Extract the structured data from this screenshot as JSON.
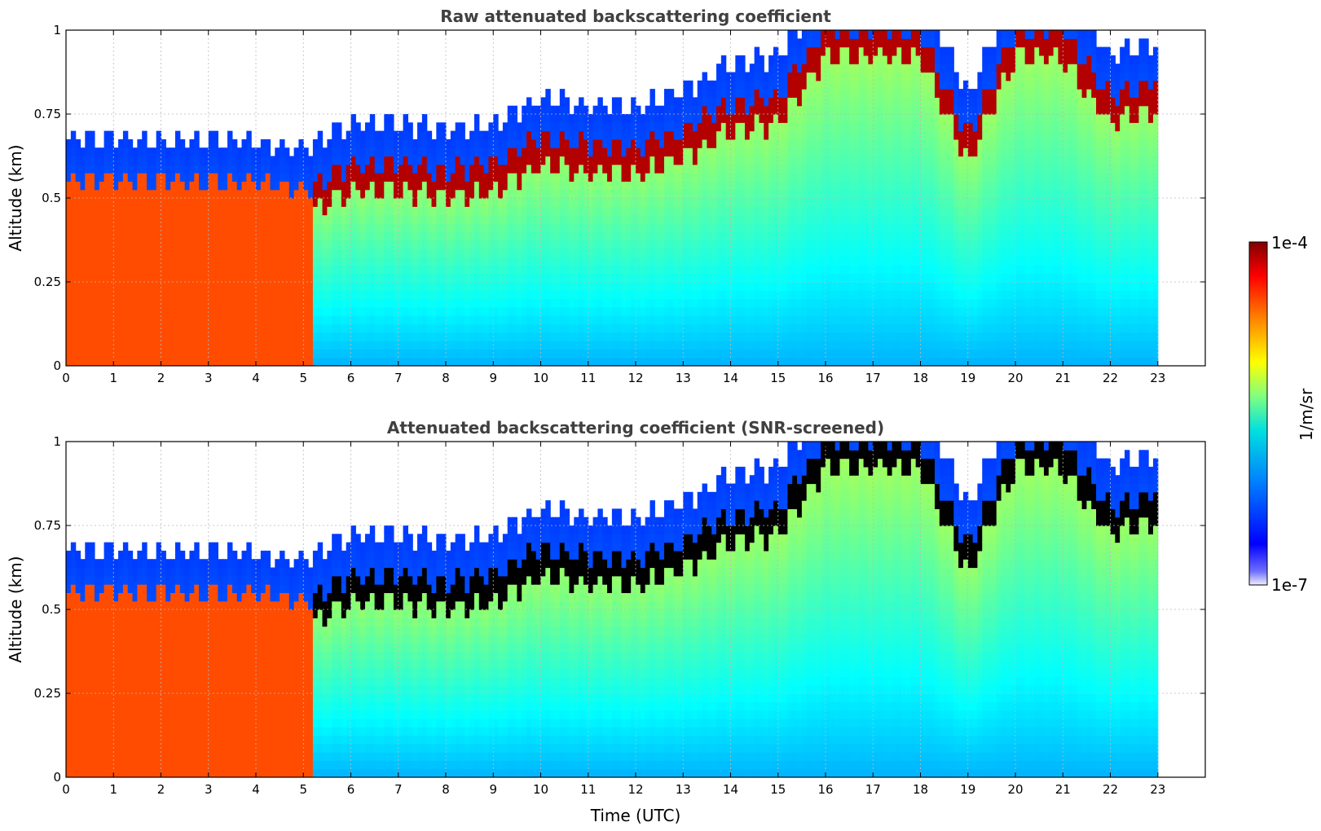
{
  "chart_data": [
    {
      "type": "heatmap",
      "title": "Raw attenuated backscattering coefficient",
      "xlabel": "",
      "ylabel": "Altitude (km)",
      "x_unit": "UTC hour",
      "xlim": [
        0,
        24
      ],
      "ylim": [
        0,
        1
      ],
      "x_ticks": [
        0,
        1,
        2,
        3,
        4,
        5,
        6,
        7,
        8,
        9,
        10,
        11,
        12,
        13,
        14,
        15,
        16,
        17,
        18,
        19,
        20,
        21,
        22,
        23
      ],
      "y_ticks": [
        0,
        0.25,
        0.5,
        0.75,
        1
      ],
      "y_tick_labels": [
        "0",
        "0.25",
        "0.5",
        "0.75",
        "1"
      ],
      "grid": true,
      "data_end_hour": 23,
      "top_height_profile": {
        "x": [
          0,
          1,
          2,
          3,
          4,
          5,
          6,
          7,
          8,
          9,
          10,
          11,
          12,
          13,
          14,
          15,
          16,
          17,
          18,
          19,
          20,
          21,
          22,
          23
        ],
        "y": [
          0.55,
          0.56,
          0.55,
          0.55,
          0.55,
          0.52,
          0.6,
          0.6,
          0.58,
          0.6,
          0.68,
          0.66,
          0.65,
          0.7,
          0.78,
          0.8,
          1.0,
          1.0,
          1.0,
          0.68,
          1.0,
          1.0,
          0.8,
          0.85
        ]
      }
    },
    {
      "type": "heatmap",
      "title": "Attenuated backscattering coefficient (SNR-screened)",
      "xlabel": "Time (UTC)",
      "ylabel": "Altitude (km)",
      "x_unit": "UTC hour",
      "xlim": [
        0,
        24
      ],
      "ylim": [
        0,
        1
      ],
      "x_ticks": [
        0,
        1,
        2,
        3,
        4,
        5,
        6,
        7,
        8,
        9,
        10,
        11,
        12,
        13,
        14,
        15,
        16,
        17,
        18,
        19,
        20,
        21,
        22,
        23
      ],
      "y_ticks": [
        0,
        0.25,
        0.5,
        0.75,
        1
      ],
      "y_tick_labels": [
        "0",
        "0.25",
        "0.5",
        "0.75",
        "1"
      ],
      "grid": true,
      "data_end_hour": 23,
      "saturated_color": "#000000",
      "top_height_profile": {
        "x": [
          0,
          1,
          2,
          3,
          4,
          5,
          6,
          7,
          8,
          9,
          10,
          11,
          12,
          13,
          14,
          15,
          16,
          17,
          18,
          19,
          20,
          21,
          22,
          23
        ],
        "y": [
          0.55,
          0.56,
          0.55,
          0.55,
          0.55,
          0.52,
          0.6,
          0.6,
          0.58,
          0.6,
          0.68,
          0.66,
          0.65,
          0.7,
          0.78,
          0.8,
          1.0,
          1.0,
          1.0,
          0.68,
          1.0,
          1.0,
          0.8,
          0.85
        ]
      }
    }
  ],
  "colorbar": {
    "label": "1/m/sr",
    "max_label": "1e-4",
    "min_label": "1e-7",
    "colormap": "jet",
    "scale": "log",
    "range": [
      1e-07,
      0.0001
    ]
  }
}
